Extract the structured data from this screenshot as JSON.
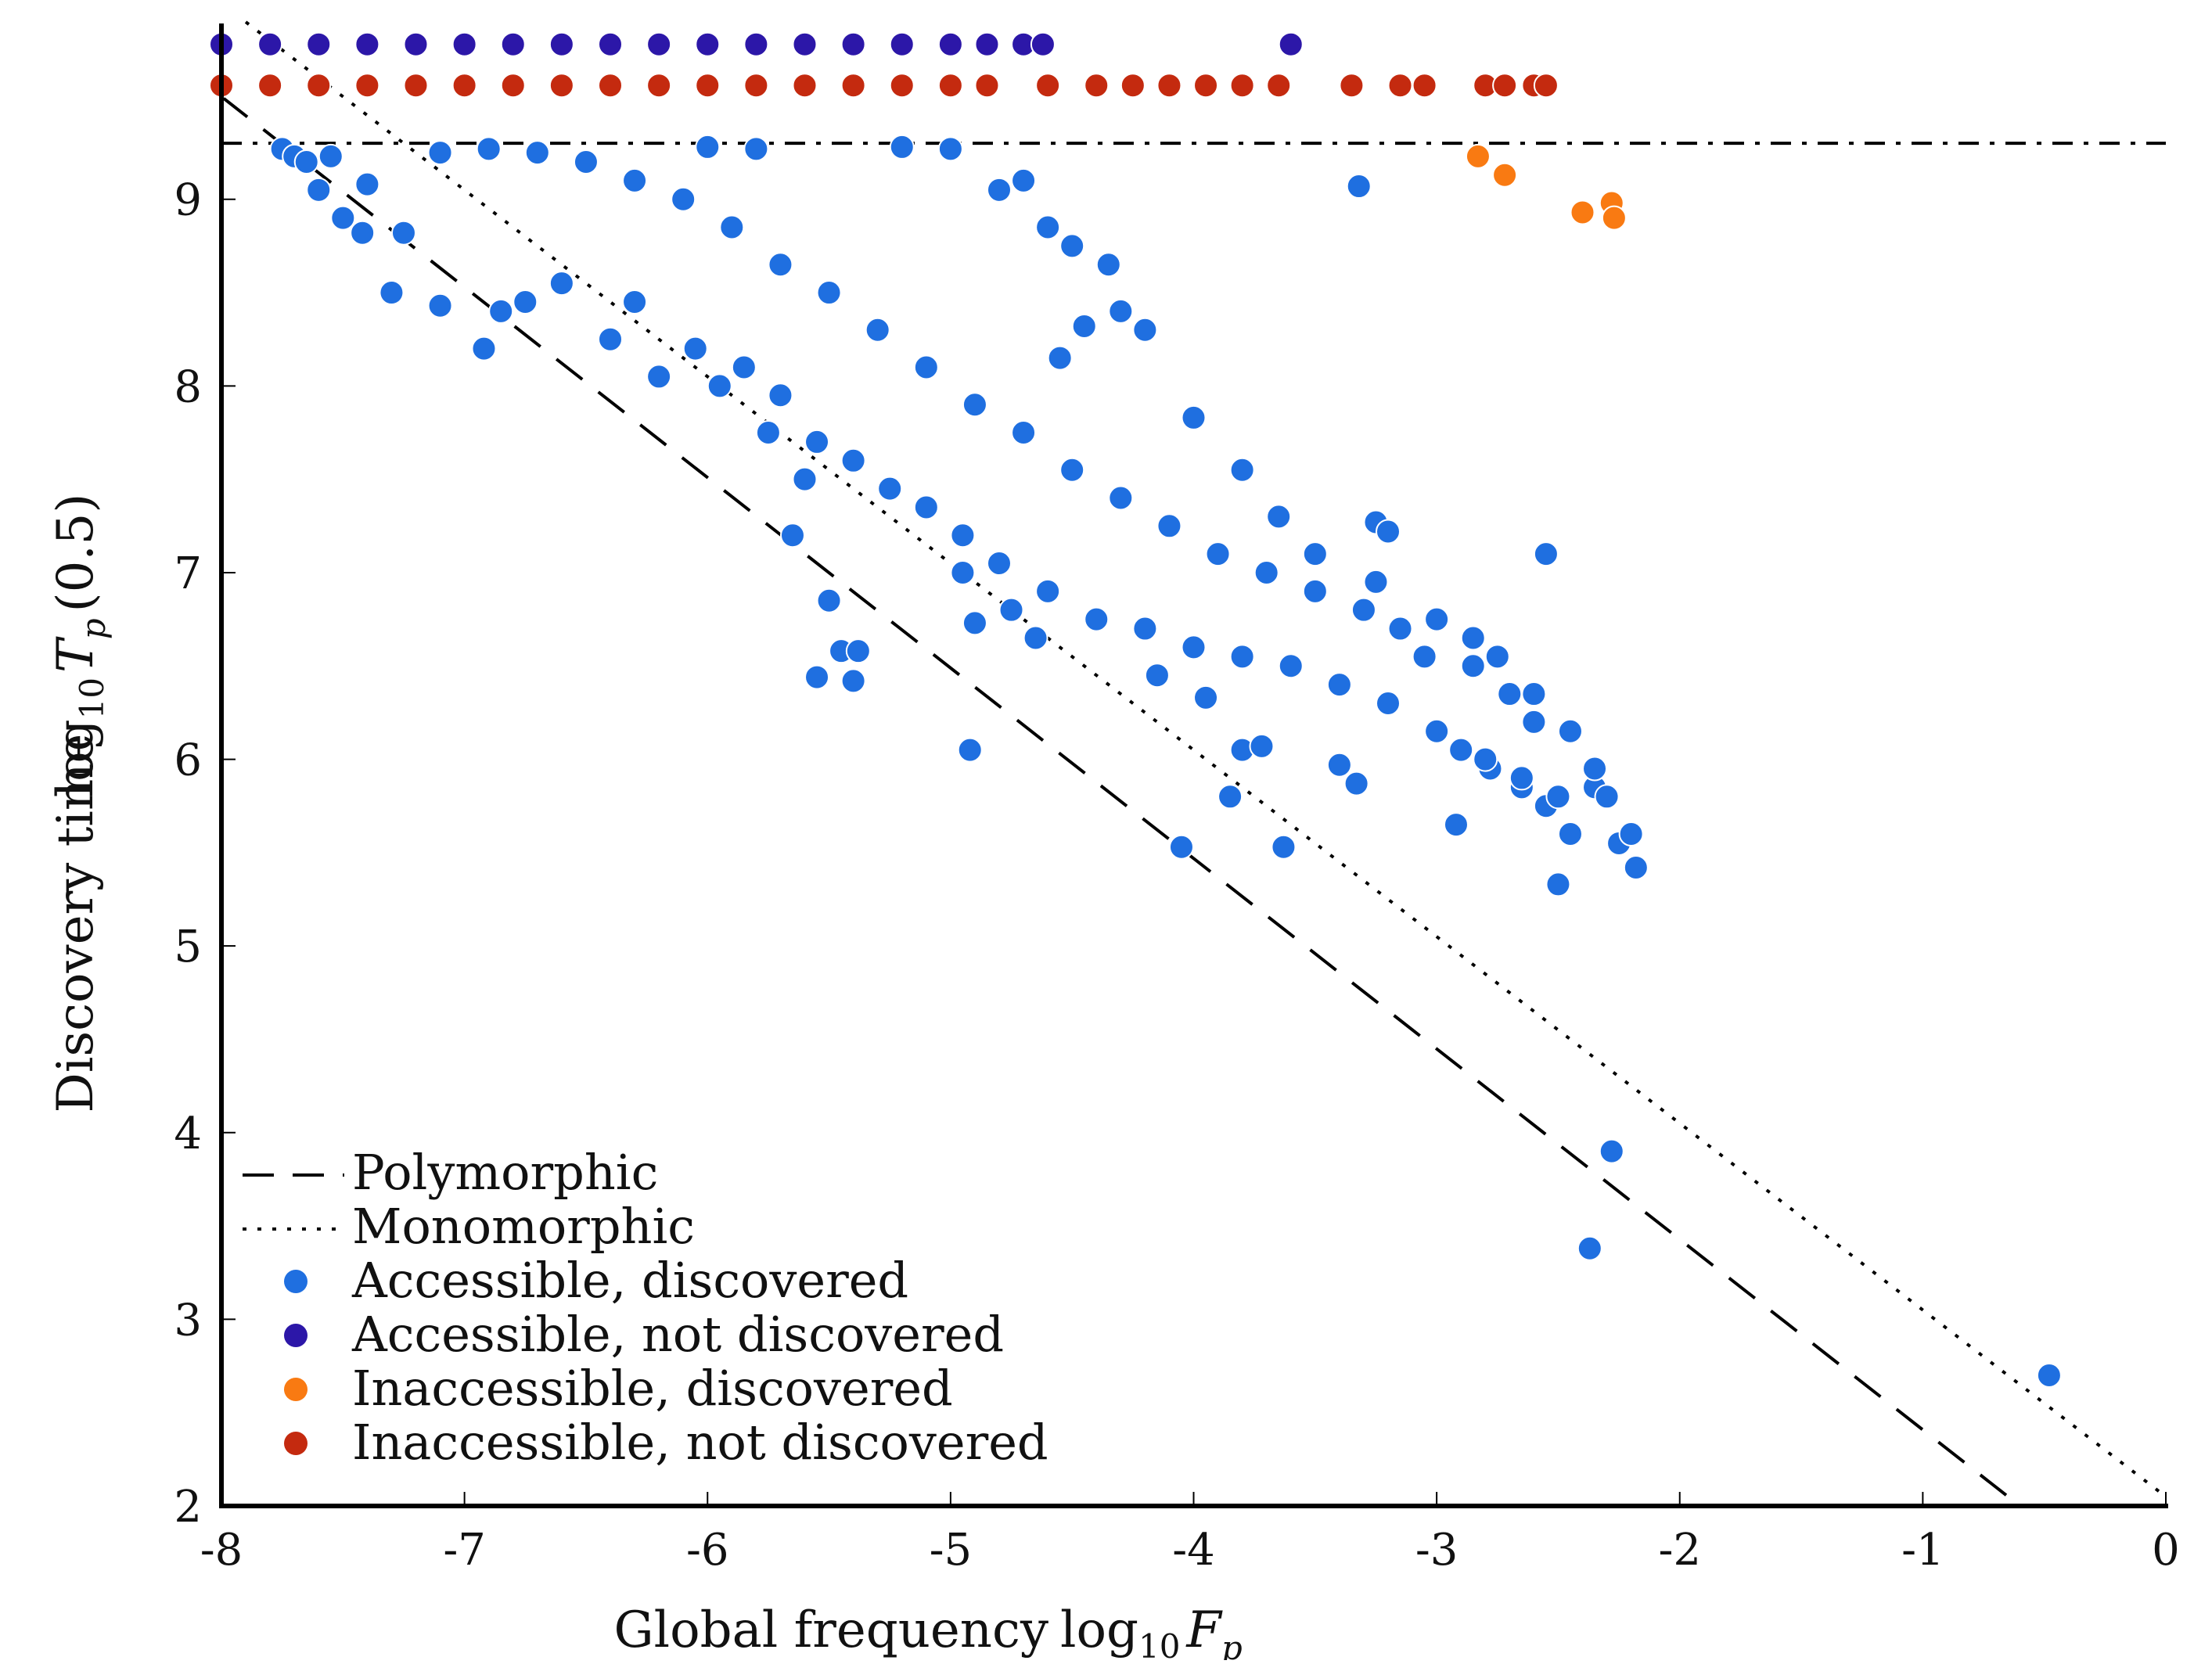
{
  "chart_data": {
    "type": "scatter",
    "title": "",
    "xlabel": "Global frequency",
    "xlabel_math": "log10 Fp",
    "ylabel": "Discovery time",
    "ylabel_math": "log10 Tp (0.5)",
    "xlim": [
      -8,
      0
    ],
    "ylim": [
      2,
      9.9
    ],
    "x_ticks": [
      -8,
      -7,
      -6,
      -5,
      -4,
      -3,
      -2,
      -1,
      0
    ],
    "x_tick_labels": [
      "-8",
      "-7",
      "-6",
      "-5",
      "-4",
      "-3",
      "-2",
      "-1",
      "0"
    ],
    "y_ticks": [
      2,
      3,
      4,
      5,
      6,
      7,
      8,
      9
    ],
    "y_tick_labels": [
      "2",
      "3",
      "4",
      "5",
      "6",
      "7",
      "8",
      "9"
    ],
    "grid": false,
    "legend_position": "bottom-left",
    "reference_lines": [
      {
        "name": "Polymorphic",
        "style": "dashed",
        "x": [
          -8,
          -0.6
        ],
        "y": [
          9.55,
          2.0
        ]
      },
      {
        "name": "Monomorphic",
        "style": "dotted",
        "x": [
          -7.9,
          0
        ],
        "y": [
          9.95,
          2.05
        ]
      },
      {
        "name": "",
        "style": "dashdot",
        "y_const": 9.3
      }
    ],
    "series": [
      {
        "name": "Accessible, discovered",
        "color": "#1f6fe0",
        "points": [
          [
            -7.75,
            9.27
          ],
          [
            -7.7,
            9.23
          ],
          [
            -7.65,
            9.2
          ],
          [
            -7.6,
            9.05
          ],
          [
            -7.55,
            9.23
          ],
          [
            -7.5,
            8.9
          ],
          [
            -7.42,
            8.82
          ],
          [
            -7.4,
            9.08
          ],
          [
            -7.3,
            8.5
          ],
          [
            -7.25,
            8.82
          ],
          [
            -7.1,
            8.43
          ],
          [
            -6.92,
            8.2
          ],
          [
            -6.85,
            8.4
          ],
          [
            -6.75,
            8.45
          ],
          [
            -6.2,
            8.05
          ],
          [
            -5.95,
            8.0
          ],
          [
            -5.75,
            7.75
          ],
          [
            -5.6,
            7.5
          ],
          [
            -5.65,
            7.2
          ],
          [
            -5.5,
            6.85
          ],
          [
            -5.45,
            6.58
          ],
          [
            -5.38,
            6.58
          ],
          [
            -5.55,
            6.44
          ],
          [
            -5.4,
            6.42
          ],
          [
            -4.9,
            6.73
          ],
          [
            -4.95,
            7.0
          ],
          [
            -4.92,
            6.05
          ],
          [
            -4.75,
            6.8
          ],
          [
            -4.65,
            6.65
          ],
          [
            -4.15,
            6.45
          ],
          [
            -3.95,
            6.33
          ],
          [
            -3.8,
            6.05
          ],
          [
            -3.72,
            6.07
          ],
          [
            -3.4,
            5.97
          ],
          [
            -3.33,
            5.87
          ],
          [
            -3.25,
            7.27
          ],
          [
            -3.2,
            7.22
          ],
          [
            -2.92,
            5.65
          ],
          [
            -2.55,
            7.1
          ],
          [
            -3.32,
            9.07
          ],
          [
            -4.05,
            5.53
          ],
          [
            -3.85,
            5.8
          ],
          [
            -3.63,
            5.53
          ],
          [
            -2.5,
            5.33
          ],
          [
            -2.18,
            5.42
          ],
          [
            -2.28,
            3.9
          ],
          [
            -2.37,
            3.38
          ],
          [
            -0.48,
            2.7
          ],
          [
            -2.25,
            5.55
          ],
          [
            -2.45,
            5.6
          ],
          [
            -2.55,
            5.75
          ],
          [
            -2.65,
            5.85
          ],
          [
            -2.78,
            5.95
          ],
          [
            -2.9,
            6.05
          ],
          [
            -2.35,
            5.85
          ],
          [
            -2.6,
            6.2
          ],
          [
            -2.7,
            6.35
          ],
          [
            -2.85,
            6.5
          ],
          [
            -3.05,
            6.55
          ],
          [
            -3.15,
            6.7
          ],
          [
            -3.3,
            6.8
          ],
          [
            -3.5,
            6.9
          ],
          [
            -3.7,
            7.0
          ],
          [
            -3.9,
            7.1
          ],
          [
            -4.1,
            7.25
          ],
          [
            -4.3,
            7.4
          ],
          [
            -4.5,
            7.55
          ],
          [
            -4.7,
            7.75
          ],
          [
            -4.9,
            7.9
          ],
          [
            -5.1,
            8.1
          ],
          [
            -5.3,
            8.3
          ],
          [
            -5.5,
            8.5
          ],
          [
            -5.7,
            8.65
          ],
          [
            -5.9,
            8.85
          ],
          [
            -6.1,
            9.0
          ],
          [
            -6.3,
            9.1
          ],
          [
            -6.5,
            9.2
          ],
          [
            -6.7,
            9.25
          ],
          [
            -6.9,
            9.27
          ],
          [
            -7.1,
            9.25
          ],
          [
            -5.0,
            9.27
          ],
          [
            -5.2,
            9.28
          ],
          [
            -5.8,
            9.27
          ],
          [
            -6.0,
            9.28
          ],
          [
            -4.7,
            9.1
          ],
          [
            -4.8,
            9.05
          ],
          [
            -4.6,
            8.85
          ],
          [
            -4.5,
            8.75
          ],
          [
            -4.35,
            8.65
          ],
          [
            -4.3,
            8.4
          ],
          [
            -4.2,
            8.3
          ],
          [
            -4.45,
            8.32
          ],
          [
            -4.55,
            8.15
          ],
          [
            -4.0,
            7.83
          ],
          [
            -3.8,
            7.55
          ],
          [
            -3.65,
            7.3
          ],
          [
            -3.5,
            7.1
          ],
          [
            -3.25,
            6.95
          ],
          [
            -3.0,
            6.75
          ],
          [
            -2.85,
            6.65
          ],
          [
            -2.75,
            6.55
          ],
          [
            -2.6,
            6.35
          ],
          [
            -2.45,
            6.15
          ],
          [
            -2.35,
            5.95
          ],
          [
            -2.3,
            5.8
          ],
          [
            -2.2,
            5.6
          ],
          [
            -6.6,
            8.55
          ],
          [
            -6.4,
            8.25
          ],
          [
            -6.3,
            8.45
          ],
          [
            -6.05,
            8.2
          ],
          [
            -5.85,
            8.1
          ],
          [
            -5.7,
            7.95
          ],
          [
            -5.55,
            7.7
          ],
          [
            -5.4,
            7.6
          ],
          [
            -5.25,
            7.45
          ],
          [
            -5.1,
            7.35
          ],
          [
            -4.95,
            7.2
          ],
          [
            -4.8,
            7.05
          ],
          [
            -4.6,
            6.9
          ],
          [
            -4.4,
            6.75
          ],
          [
            -4.2,
            6.7
          ],
          [
            -4.0,
            6.6
          ],
          [
            -3.8,
            6.55
          ],
          [
            -3.6,
            6.5
          ],
          [
            -3.4,
            6.4
          ],
          [
            -3.2,
            6.3
          ],
          [
            -3.0,
            6.15
          ],
          [
            -2.8,
            6.0
          ],
          [
            -2.65,
            5.9
          ],
          [
            -2.5,
            5.8
          ]
        ]
      },
      {
        "name": "Accessible, not discovered",
        "color": "#2c17a8",
        "points": [
          [
            -8.0,
            9.83
          ],
          [
            -7.8,
            9.83
          ],
          [
            -7.6,
            9.83
          ],
          [
            -7.4,
            9.83
          ],
          [
            -7.2,
            9.83
          ],
          [
            -7.0,
            9.83
          ],
          [
            -6.8,
            9.83
          ],
          [
            -6.6,
            9.83
          ],
          [
            -6.4,
            9.83
          ],
          [
            -6.2,
            9.83
          ],
          [
            -6.0,
            9.83
          ],
          [
            -5.8,
            9.83
          ],
          [
            -5.6,
            9.83
          ],
          [
            -5.4,
            9.83
          ],
          [
            -5.2,
            9.83
          ],
          [
            -5.0,
            9.83
          ],
          [
            -4.85,
            9.83
          ],
          [
            -4.7,
            9.83
          ],
          [
            -4.62,
            9.83
          ],
          [
            -3.6,
            9.83
          ]
        ]
      },
      {
        "name": "Inaccessible, discovered",
        "color": "#f97a12",
        "points": [
          [
            -2.83,
            9.23
          ],
          [
            -2.72,
            9.13
          ],
          [
            -2.4,
            8.93
          ],
          [
            -2.28,
            8.98
          ],
          [
            -2.27,
            8.9
          ]
        ]
      },
      {
        "name": "Inaccessible, not discovered",
        "color": "#c42a0f",
        "points": [
          [
            -8.0,
            9.61
          ],
          [
            -7.8,
            9.61
          ],
          [
            -7.6,
            9.61
          ],
          [
            -7.4,
            9.61
          ],
          [
            -7.2,
            9.61
          ],
          [
            -7.0,
            9.61
          ],
          [
            -6.8,
            9.61
          ],
          [
            -6.6,
            9.61
          ],
          [
            -6.4,
            9.61
          ],
          [
            -6.2,
            9.61
          ],
          [
            -6.0,
            9.61
          ],
          [
            -5.8,
            9.61
          ],
          [
            -5.6,
            9.61
          ],
          [
            -5.4,
            9.61
          ],
          [
            -5.2,
            9.61
          ],
          [
            -5.0,
            9.61
          ],
          [
            -4.85,
            9.61
          ],
          [
            -4.6,
            9.61
          ],
          [
            -4.4,
            9.61
          ],
          [
            -4.25,
            9.61
          ],
          [
            -4.1,
            9.61
          ],
          [
            -3.95,
            9.61
          ],
          [
            -3.8,
            9.61
          ],
          [
            -3.65,
            9.61
          ],
          [
            -3.35,
            9.61
          ],
          [
            -3.15,
            9.61
          ],
          [
            -3.05,
            9.61
          ],
          [
            -2.8,
            9.61
          ],
          [
            -2.72,
            9.61
          ],
          [
            -2.6,
            9.61
          ],
          [
            -2.55,
            9.61
          ]
        ]
      }
    ]
  }
}
